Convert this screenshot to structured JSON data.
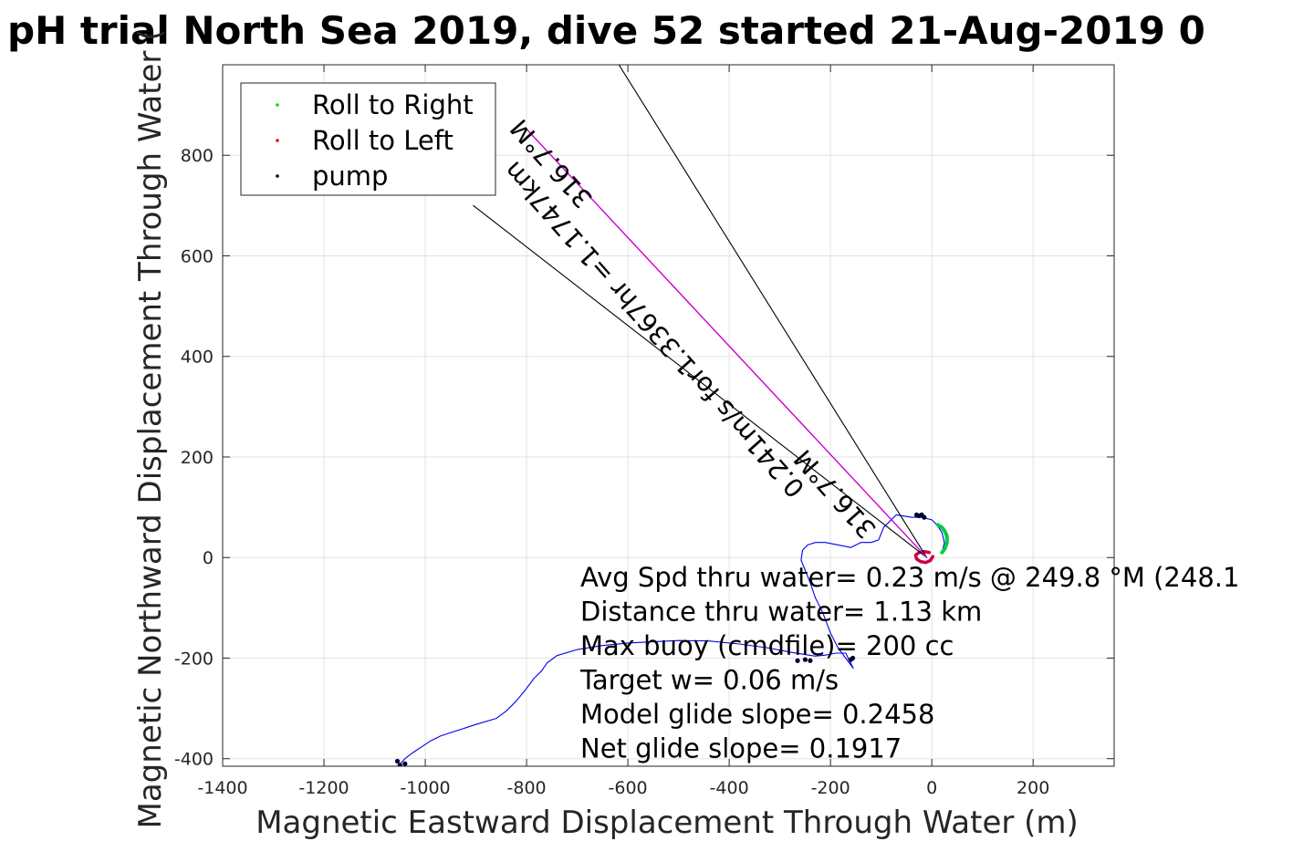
{
  "chart_data": {
    "type": "line",
    "title": "pH trial North Sea 2019, dive 52 started 21-Aug-2019 0",
    "xlabel": "Magnetic Eastward Displacement Through Water (m)",
    "ylabel": "Magnetic Northward Displacement Through Water (",
    "xlim": [
      -1400,
      360
    ],
    "ylim": [
      -415,
      980
    ],
    "xticks": [
      -1400,
      -1200,
      -1000,
      -800,
      -600,
      -400,
      -200,
      0,
      200
    ],
    "yticks": [
      -400,
      -200,
      0,
      200,
      400,
      600,
      800
    ],
    "grid": true,
    "legend": {
      "position": "top-left",
      "entries": [
        {
          "label": "Roll to Right",
          "color": "#00dd00"
        },
        {
          "label": "Roll to Left",
          "color": "#ff0000"
        },
        {
          "label": "pump",
          "color": "#000000"
        }
      ]
    },
    "colors": {
      "track": "#0000ee",
      "roll_right": "#00cc44",
      "roll_left": "#cc0044",
      "pump": "#000033",
      "current_line": "#000000",
      "model_line": "#cc00cc"
    },
    "series": [
      {
        "style": "track",
        "x": [
          -1052,
          -1040,
          -1030,
          -1020,
          -1005,
          -990,
          -980,
          -970,
          -940,
          -900,
          -860,
          -840,
          -820,
          -800,
          -785,
          -770,
          -760,
          -740,
          -700,
          -650,
          -600,
          -500,
          -440,
          -380,
          -320,
          -280,
          -250,
          -230,
          -210,
          -190,
          -170,
          -155,
          -170,
          -185,
          -200,
          -215,
          -230,
          -240,
          -250,
          -258,
          -255,
          -245,
          -230,
          -210,
          -185,
          -160,
          -140,
          -120,
          -105,
          -95,
          -70,
          -40,
          -20,
          0,
          10,
          20,
          25,
          20
        ],
        "y": [
          -413,
          -400,
          -392,
          -385,
          -375,
          -365,
          -360,
          -355,
          -345,
          -332,
          -320,
          -305,
          -285,
          -260,
          -240,
          -225,
          -210,
          -195,
          -183,
          -175,
          -170,
          -165,
          -166,
          -172,
          -180,
          -188,
          -193,
          -196,
          -194,
          -190,
          -190,
          -220,
          -200,
          -180,
          -150,
          -110,
          -80,
          -50,
          -25,
          -5,
          15,
          25,
          30,
          30,
          25,
          20,
          30,
          30,
          35,
          60,
          85,
          80,
          80,
          75,
          65,
          50,
          30,
          10
        ]
      },
      {
        "style": "roll_right",
        "x": [
          12,
          20,
          26,
          30,
          30,
          26,
          20
        ],
        "y": [
          65,
          60,
          52,
          42,
          30,
          18,
          10
        ]
      },
      {
        "style": "roll_left",
        "x": [
          -5,
          -15,
          -25,
          -32,
          -30,
          -22,
          -12,
          -3,
          2
        ],
        "y": [
          10,
          12,
          10,
          5,
          -3,
          -8,
          -10,
          -6,
          2
        ]
      },
      {
        "style": "pump",
        "x": [
          -1055,
          -1050,
          -1040,
          -30,
          -25,
          -20,
          -15,
          -265,
          -250,
          -240,
          -160,
          -156
        ],
        "y": [
          -405,
          -413,
          -410,
          85,
          83,
          85,
          80,
          -205,
          -203,
          -205,
          -203,
          -200
        ]
      },
      {
        "style": "current_line",
        "x": [
          -10,
          -905
        ],
        "y": [
          0,
          700
        ]
      },
      {
        "style": "current_line",
        "x": [
          -10,
          -630
        ],
        "y": [
          0,
          1000
        ]
      },
      {
        "style": "model_line",
        "x": [
          -10,
          -800
        ],
        "y": [
          0,
          852
        ]
      }
    ],
    "annotations": [
      {
        "text": "0.241m/s for1.3367hr =1.1747km",
        "x": -535,
        "y": 465,
        "rotation": 48.5
      },
      {
        "text": "316.7°M",
        "x": -738,
        "y": 795,
        "rotation": 48.5
      },
      {
        "text": "316.7°M",
        "x": -178,
        "y": 138,
        "rotation": 48.5
      }
    ],
    "summary": [
      "Avg Spd thru water=  0.23 m/s @ 249.8 °M (248.1",
      "Distance thru water=  1.13 km",
      "Max buoy (cmdfile)= 200 cc",
      "Target w= 0.06 m/s",
      "Model glide slope= 0.2458",
      "Net glide slope= 0.1917"
    ]
  }
}
